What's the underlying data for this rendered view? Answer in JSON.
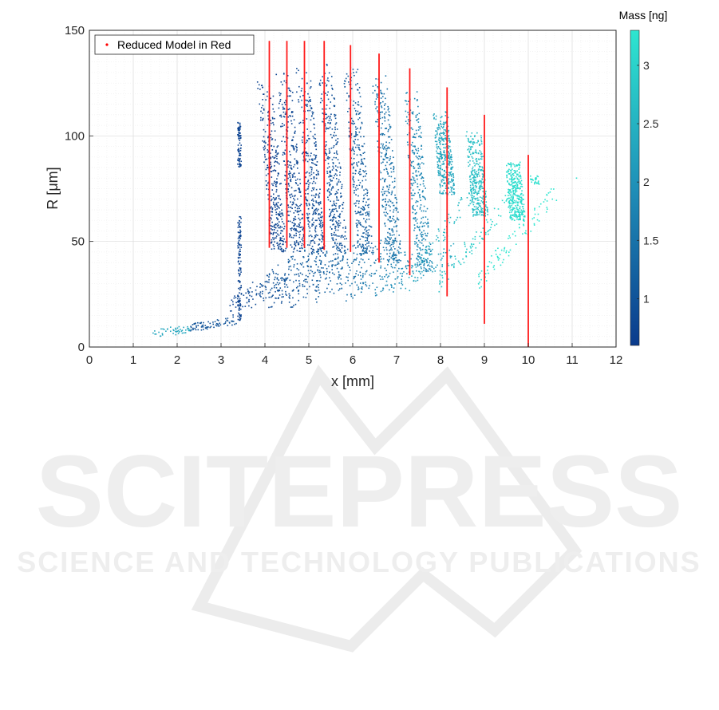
{
  "chart_data": {
    "type": "scatter",
    "xlabel": "x [mm]",
    "ylabel": "R [μm]",
    "xlim": [
      0,
      12
    ],
    "ylim": [
      0,
      150
    ],
    "x_ticks": [
      "0",
      "1",
      "2",
      "3",
      "4",
      "5",
      "6",
      "7",
      "8",
      "9",
      "10",
      "11",
      "12"
    ],
    "y_ticks": [
      "0",
      "50",
      "100",
      "150"
    ],
    "grid": true,
    "minor_grid": true,
    "legend": {
      "position": "top-left",
      "entries": [
        "Reduced Model in Red"
      ]
    },
    "colorbar": {
      "title": "Mass [ng]",
      "range": [
        0.6,
        3.3
      ],
      "ticks": [
        "1",
        "1.5",
        "2",
        "2.5",
        "3"
      ],
      "tick_values": [
        1,
        1.5,
        2,
        2.5,
        3
      ],
      "colors": [
        "#0a3a8c",
        "#1f8fb8",
        "#2ee6d0"
      ]
    },
    "reduced_model_lines": [
      {
        "x": 4.1,
        "y0": 47,
        "y1": 145
      },
      {
        "x": 4.5,
        "y0": 47,
        "y1": 145
      },
      {
        "x": 4.9,
        "y0": 47,
        "y1": 145
      },
      {
        "x": 5.35,
        "y0": 46,
        "y1": 145
      },
      {
        "x": 5.95,
        "y0": 45,
        "y1": 143
      },
      {
        "x": 6.6,
        "y0": 40,
        "y1": 139
      },
      {
        "x": 7.3,
        "y0": 34,
        "y1": 132
      },
      {
        "x": 8.15,
        "y0": 24,
        "y1": 123
      },
      {
        "x": 9.0,
        "y0": 11,
        "y1": 110
      },
      {
        "x": 10.0,
        "y0": 0,
        "y1": 91
      }
    ],
    "point_clusters": [
      {
        "x": 1.5,
        "y": 7,
        "mass": 2.4
      },
      {
        "x": 2.0,
        "y": 9,
        "mass": 2.3
      },
      {
        "x": 2.6,
        "y": 12,
        "mass": 1.2
      },
      {
        "x": 3.45,
        "y": 95,
        "mass": 0.8
      },
      {
        "x": 3.4,
        "y": 40,
        "mass": 0.8
      },
      {
        "x": 4.0,
        "y": 110,
        "mass": 0.8
      },
      {
        "x": 4.45,
        "y": 110,
        "mass": 0.9
      },
      {
        "x": 4.85,
        "y": 110,
        "mass": 0.9
      },
      {
        "x": 5.35,
        "y": 110,
        "mass": 1.0
      },
      {
        "x": 5.95,
        "y": 110,
        "mass": 1.2
      },
      {
        "x": 6.6,
        "y": 110,
        "mass": 1.5
      },
      {
        "x": 7.3,
        "y": 110,
        "mass": 1.8
      },
      {
        "x": 8.0,
        "y": 95,
        "mass": 2.3
      },
      {
        "x": 8.8,
        "y": 95,
        "mass": 2.7
      },
      {
        "x": 9.6,
        "y": 82,
        "mass": 3.1
      },
      {
        "x": 11.1,
        "y": 80,
        "mass": 3.2
      }
    ]
  },
  "watermark": {
    "title": "SCITEPRESS",
    "subtitle": "SCIENCE AND TECHNOLOGY PUBLICATIONS"
  }
}
